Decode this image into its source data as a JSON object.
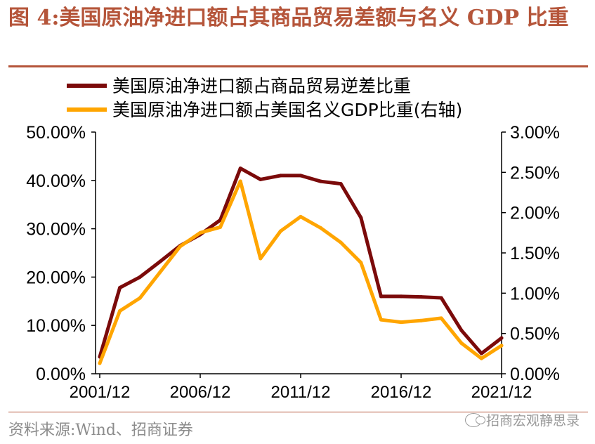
{
  "header": {
    "title": "图 4:美国原油净进口额占其商品贸易差额与名义 GDP 比重"
  },
  "footer": {
    "source": "资料来源:Wind、招商证券",
    "watermark": "招商宏观静思录",
    "watermark_icon": "wechat-icon"
  },
  "colors": {
    "title": "#b5553a",
    "series1": "#7b0a0a",
    "series2": "#ffa500",
    "text": "#000000"
  },
  "chart_data": {
    "type": "line",
    "x": [
      "2001/12",
      "2002/12",
      "2003/12",
      "2004/12",
      "2005/12",
      "2006/12",
      "2007/12",
      "2008/12",
      "2009/12",
      "2010/12",
      "2011/12",
      "2012/12",
      "2013/12",
      "2014/12",
      "2015/12",
      "2016/12",
      "2017/12",
      "2018/12",
      "2019/12",
      "2020/12",
      "2021/12"
    ],
    "x_tick_labels": [
      "2001/12",
      "2006/12",
      "2011/12",
      "2016/12",
      "2021/12"
    ],
    "series": [
      {
        "name": "美国原油净进口额占商品贸易逆差比重",
        "axis": "left",
        "color": "#7b0a0a",
        "values": [
          3.5,
          17.8,
          20.0,
          23.2,
          26.5,
          28.8,
          31.8,
          42.5,
          40.2,
          41.0,
          41.0,
          39.8,
          39.3,
          32.3,
          16.0,
          16.0,
          15.9,
          15.7,
          9.0,
          4.2,
          7.4
        ]
      },
      {
        "name": "美国原油净进口额占美国名义GDP比重(右轴)",
        "axis": "right",
        "color": "#ffa500",
        "values": [
          0.13,
          0.78,
          0.94,
          1.26,
          1.58,
          1.75,
          1.82,
          2.39,
          1.43,
          1.77,
          1.95,
          1.81,
          1.63,
          1.38,
          0.67,
          0.64,
          0.66,
          0.69,
          0.38,
          0.19,
          0.35
        ]
      }
    ],
    "y_left": {
      "ticks": [
        "0.00%",
        "10.00%",
        "20.00%",
        "30.00%",
        "40.00%",
        "50.00%"
      ],
      "ylim": [
        0,
        50
      ]
    },
    "y_right": {
      "ticks": [
        "0.00%",
        "0.50%",
        "1.00%",
        "1.50%",
        "2.00%",
        "2.50%",
        "3.00%"
      ],
      "ylim": [
        0,
        3
      ]
    },
    "legend_placement": "top-left",
    "grid": false
  }
}
